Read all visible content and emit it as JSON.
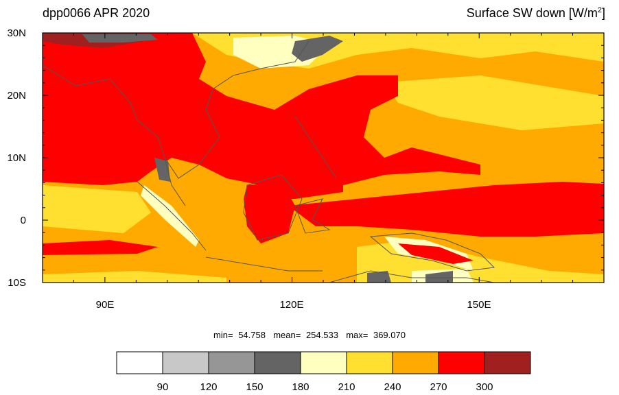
{
  "title_left": "dpp0066 APR 2020",
  "title_right_main": "Surface SW down [W/m",
  "title_right_sup": "2",
  "title_right_end": "]",
  "lat_labels": [
    "30N",
    "20N",
    "10N",
    "0",
    "10S"
  ],
  "lon_labels": [
    "90E",
    "120E",
    "150E"
  ],
  "stats": {
    "min_label": "min=",
    "min_value": "54.758",
    "mean_label": "mean=",
    "mean_value": "254.533",
    "max_label": "max=",
    "max_value": "369.070"
  },
  "colorbar": {
    "levels": [
      "90",
      "120",
      "150",
      "180",
      "210",
      "240",
      "270",
      "300"
    ],
    "colors": [
      "#ffffff",
      "#c8c8c8",
      "#969696",
      "#646464",
      "#ffffc0",
      "#ffe030",
      "#ffaa00",
      "#ff0000",
      "#a02020"
    ]
  },
  "map": {
    "extent": {
      "lon_min": 80,
      "lon_max": 170,
      "lat_min": -10,
      "lat_max": 30
    },
    "colors": {
      "background": "#ffaa00",
      "light_orange": "#ffe030",
      "pale_yellow": "#ffffc0",
      "red": "#ff0000",
      "dark_red": "#a02020",
      "dark_gray": "#646464",
      "mid_gray": "#969696",
      "coast": "#555555"
    }
  }
}
